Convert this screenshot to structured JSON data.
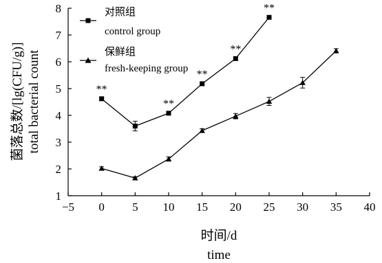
{
  "chart_data": {
    "type": "line",
    "xlabel_cn": "时间/d",
    "xlabel_en": "time",
    "ylabel_cn": "菌落总数/[lg(CFU/g)]",
    "ylabel_en": "total bacterial count",
    "xlim": [
      -5,
      40
    ],
    "ylim": [
      1,
      8
    ],
    "xticks": [
      "−5",
      "0",
      "5",
      "10",
      "15",
      "20",
      "25",
      "30",
      "35",
      "40"
    ],
    "yticks": [
      "1",
      "2",
      "3",
      "4",
      "5",
      "6",
      "7",
      "8"
    ],
    "legend_position": "top-left",
    "significance_marker": "**",
    "series": [
      {
        "name_cn": "对照组",
        "name_en": "control group",
        "marker": "square",
        "x": [
          0,
          5,
          10,
          15,
          20,
          25
        ],
        "y": [
          4.62,
          3.6,
          4.08,
          5.18,
          6.12,
          7.66
        ],
        "err": [
          0.05,
          0.18,
          0.05,
          0.05,
          0.07,
          0.04
        ],
        "significant": [
          true,
          false,
          true,
          true,
          true,
          true
        ]
      },
      {
        "name_cn": "保鲜组",
        "name_en": "fresh-keeping group",
        "marker": "triangle",
        "x": [
          0,
          5,
          10,
          15,
          20,
          25,
          30,
          35
        ],
        "y": [
          2.02,
          1.66,
          2.37,
          3.43,
          3.97,
          4.52,
          5.22,
          6.41
        ],
        "err": [
          0.06,
          0.05,
          0.08,
          0.07,
          0.1,
          0.15,
          0.2,
          0.08
        ],
        "significant": [
          false,
          false,
          false,
          false,
          false,
          false,
          false,
          false
        ]
      }
    ]
  }
}
